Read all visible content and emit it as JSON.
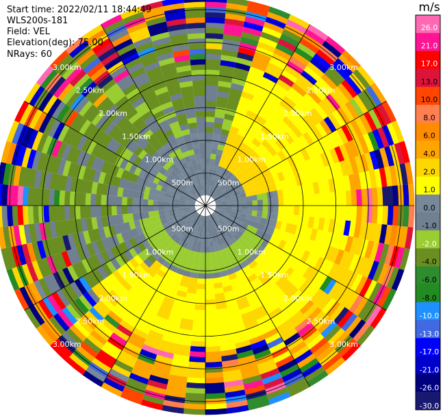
{
  "header": {
    "start_time": "Start time: 2022/02/11 18:44:49",
    "instrument": "WLS200s-181",
    "field": "Field: VEL",
    "elevation": "Elevation(deg): 75.00",
    "nrays": "NRays: 60"
  },
  "chart_data": {
    "type": "heatmap",
    "projection": "polar-ppi",
    "field": "VEL",
    "units": "m/s",
    "n_rays": 60,
    "max_range_km": 3.2,
    "range_ring_labels": [
      "500m",
      "1.00km",
      "1.50km",
      "2.00km",
      "2.50km",
      "3.00km"
    ],
    "range_rings_km": [
      0.5,
      1.0,
      1.5,
      2.0,
      2.5,
      3.0
    ],
    "colorbar": {
      "title": "m/s",
      "ticks": [
        "26.0",
        "21.0",
        "17.0",
        "13.0",
        "10.0",
        "8.0",
        "6.0",
        "4.0",
        "2.0",
        "1.0",
        "0.0",
        "-1.0",
        "-2.0",
        "-4.0",
        "-6.0",
        "-8.0",
        "-10.0",
        "-13.0",
        "-17.0",
        "-21.0",
        "-26.0",
        "-30.0"
      ],
      "bins": [
        {
          "min": -30,
          "max": -26,
          "color": "#191970"
        },
        {
          "min": -26,
          "max": -21,
          "color": "#000080"
        },
        {
          "min": -21,
          "max": -17,
          "color": "#0000cd"
        },
        {
          "min": -17,
          "max": -13,
          "color": "#0000ff"
        },
        {
          "min": -13,
          "max": -10,
          "color": "#4169e1"
        },
        {
          "min": -10,
          "max": -8,
          "color": "#1e90ff"
        },
        {
          "min": -8,
          "max": -6,
          "color": "#228b22"
        },
        {
          "min": -6,
          "max": -4,
          "color": "#2e8b2e"
        },
        {
          "min": -4,
          "max": -2,
          "color": "#6b8e23"
        },
        {
          "min": -2,
          "max": -1,
          "color": "#9acd32"
        },
        {
          "min": -1,
          "max": 0,
          "color": "#708090"
        },
        {
          "min": 0,
          "max": 1,
          "color": "#778899"
        },
        {
          "min": 1,
          "max": 2,
          "color": "#ffff00"
        },
        {
          "min": 2,
          "max": 4,
          "color": "#ffd700"
        },
        {
          "min": 4,
          "max": 6,
          "color": "#ffa500"
        },
        {
          "min": 6,
          "max": 8,
          "color": "#ff8c00"
        },
        {
          "min": 8,
          "max": 10,
          "color": "#ff7f50"
        },
        {
          "min": 10,
          "max": 13,
          "color": "#ff4500"
        },
        {
          "min": 13,
          "max": 17,
          "color": "#dc143c"
        },
        {
          "min": 17,
          "max": 21,
          "color": "#ff0000"
        },
        {
          "min": 21,
          "max": 26,
          "color": "#ff1493"
        },
        {
          "min": 26,
          "max": 30,
          "color": "#ff69b4"
        }
      ]
    },
    "value_pattern_by_range": [
      {
        "from_km": 0.0,
        "to_km": 1.0,
        "typical": "0 to -1 (grey) with yellow 2-4 lobe to NE and green -1 to -2 ring"
      },
      {
        "from_km": 1.0,
        "to_km": 2.0,
        "typical": "grey/green north, yellow 1-4 east and south"
      },
      {
        "from_km": 2.0,
        "to_km": 3.2,
        "typical": "mixed noisy velocities across full -30 to 26 range"
      }
    ]
  }
}
